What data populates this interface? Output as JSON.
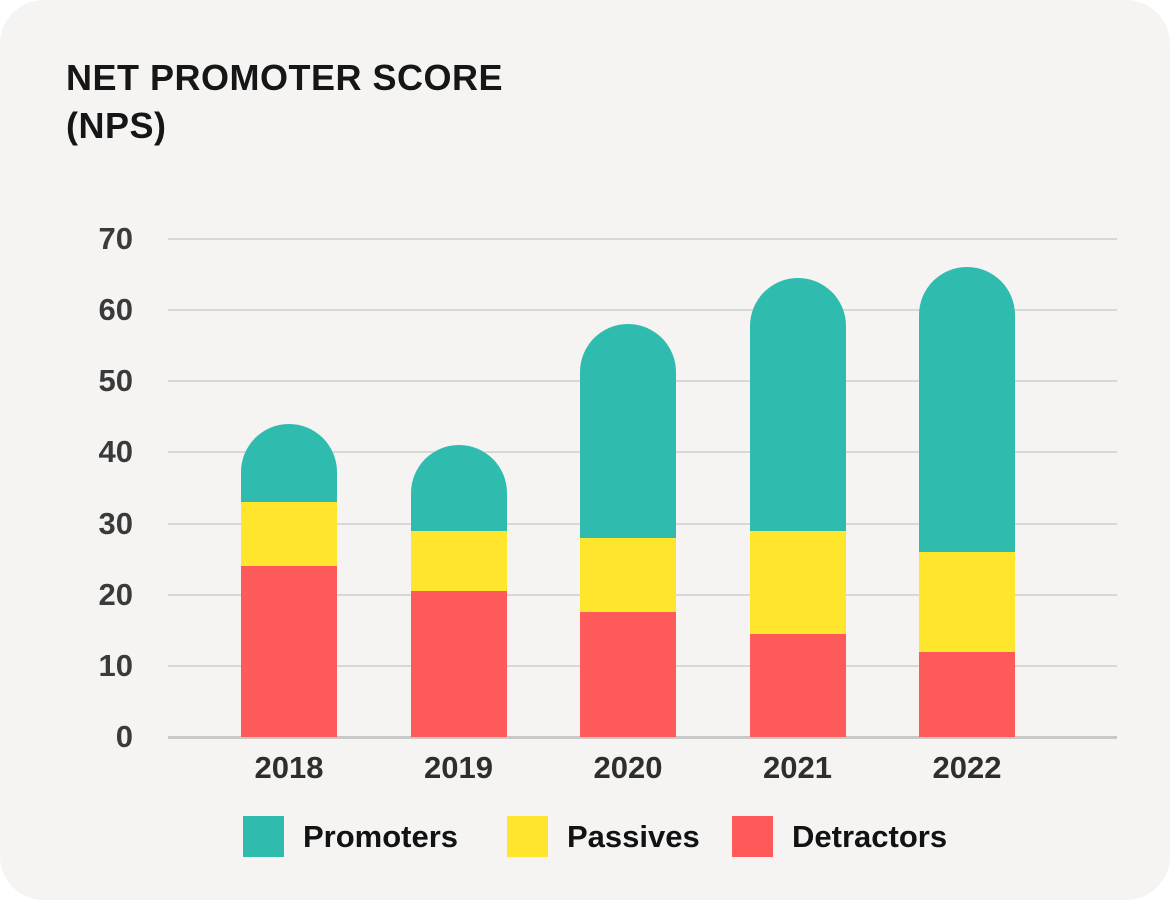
{
  "title": {
    "line1": "NET PROMOTER SCORE",
    "line2": "(NPS)"
  },
  "chart_data": {
    "type": "bar",
    "stacked": true,
    "title": "NET PROMOTER SCORE (NPS)",
    "categories": [
      "2018",
      "2019",
      "2020",
      "2021",
      "2022"
    ],
    "series": [
      {
        "name": "Promoters",
        "color": "#2FBCAE",
        "values": [
          11,
          12,
          30,
          35.5,
          40
        ]
      },
      {
        "name": "Passives",
        "color": "#FFE52C",
        "values": [
          9,
          8.5,
          10.5,
          14.5,
          14
        ]
      },
      {
        "name": "Detractors",
        "color": "#FF5A5A",
        "values": [
          24,
          20.5,
          17.5,
          14.5,
          12
        ]
      }
    ],
    "totals": [
      44,
      41,
      58,
      64.5,
      66
    ],
    "xlabel": "",
    "ylabel": "",
    "ylim": [
      0,
      70
    ],
    "yticks": [
      0,
      10,
      20,
      30,
      40,
      50,
      60,
      70
    ],
    "grid": true,
    "legend_position": "bottom"
  },
  "colors": {
    "card_background": "#F5F4F2",
    "page_background": "#FFFFFF",
    "gridline": "#D8D8D8",
    "baseline": "#C8C8C8",
    "title_text": "#161616",
    "axis_text": "#3A3A3A"
  }
}
